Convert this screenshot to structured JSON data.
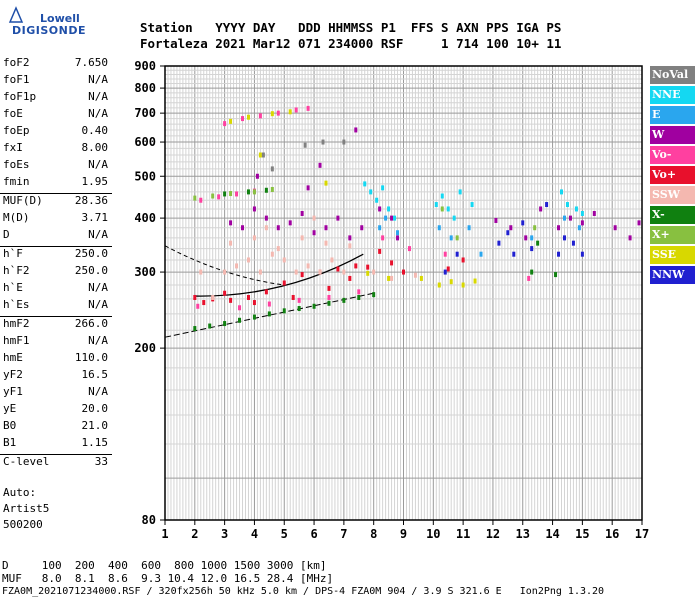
{
  "logo": {
    "line1": "Lowell",
    "line2": "DIGISONDE"
  },
  "header": {
    "row1": "Station   YYYY DAY   DDD HHMMSS P1  FFS S AXN PPS IGA PS",
    "row2": "Fortaleza 2021 Mar12 071 234000 RSF     1 714 100 10+ 11"
  },
  "params": [
    {
      "group": [
        {
          "label": "foF2",
          "value": "7.650"
        },
        {
          "label": "foF1",
          "value": "N/A"
        },
        {
          "label": "foF1p",
          "value": "N/A"
        },
        {
          "label": "foE",
          "value": "N/A"
        },
        {
          "label": "foEp",
          "value": "0.40"
        },
        {
          "label": "fxI",
          "value": "8.00"
        },
        {
          "label": "foEs",
          "value": "N/A"
        },
        {
          "label": "fmin",
          "value": "1.95"
        }
      ]
    },
    {
      "group": [
        {
          "label": "MUF(D)",
          "value": "28.36"
        },
        {
          "label": "M(D)",
          "value": "3.71"
        },
        {
          "label": "D",
          "value": "N/A"
        }
      ]
    },
    {
      "group": [
        {
          "label": "h`F",
          "value": "250.0"
        },
        {
          "label": "h`F2",
          "value": "250.0"
        },
        {
          "label": "h`E",
          "value": "N/A"
        },
        {
          "label": "h`Es",
          "value": "N/A"
        }
      ]
    },
    {
      "group": [
        {
          "label": "hmF2",
          "value": "266.0"
        },
        {
          "label": "hmF1",
          "value": "N/A"
        },
        {
          "label": "hmE",
          "value": "110.0"
        },
        {
          "label": "yF2",
          "value": "16.5"
        },
        {
          "label": "yF1",
          "value": "N/A"
        },
        {
          "label": "yE",
          "value": "20.0"
        },
        {
          "label": "B0",
          "value": "21.0"
        },
        {
          "label": "B1",
          "value": "1.15"
        }
      ]
    },
    {
      "group": [
        {
          "label": "C-level",
          "value": "33"
        }
      ]
    }
  ],
  "autoscaling": {
    "line1": "Auto:",
    "line2": "Artist5",
    "line3": "500200"
  },
  "legend": [
    {
      "label": "NoVal",
      "color": "#808080"
    },
    {
      "label": "NNE",
      "color": "#14d8f2"
    },
    {
      "label": "E",
      "color": "#2aa6ee"
    },
    {
      "label": "W",
      "color": "#a000a0"
    },
    {
      "label": "Vo-",
      "color": "#ff40a0"
    },
    {
      "label": "Vo+",
      "color": "#e8102c"
    },
    {
      "label": "SSW",
      "color": "#f4b8b0"
    },
    {
      "label": "X-",
      "color": "#108010"
    },
    {
      "label": "X+",
      "color": "#88c040"
    },
    {
      "label": "SSE",
      "color": "#d8d800"
    },
    {
      "label": "NNW",
      "color": "#2020d0"
    }
  ],
  "muf_table": {
    "row_d": "D     100  200  400  600  800 1000 1500 3000 [km]",
    "row_muf": "MUF   8.0  8.1  8.6  9.3 10.4 12.0 16.5 28.4 [MHz]"
  },
  "footer": "FZA0M_2021071234000.RSF / 320fx256h 50 kHz 5.0 km / DPS-4 FZA0M 904 / 3.9 S 321.6 E   Ion2Png 1.3.20",
  "chart_data": {
    "type": "scatter",
    "x_ticks": [
      "1",
      "2",
      "3",
      "4",
      "5",
      "6",
      "7",
      "8",
      "9",
      "10",
      "11",
      "12",
      "13",
      "14",
      "15",
      "16",
      "17"
    ],
    "y_ticks": [
      "80",
      "200",
      "300",
      "400",
      "500",
      "600",
      "700",
      "800",
      "900"
    ],
    "xlim": [
      1,
      17
    ],
    "y_scale": "log",
    "ylim": [
      80,
      900
    ],
    "grid": true,
    "series": [
      {
        "name": "Vo+",
        "color": "#e8102c",
        "points": [
          [
            2.0,
            262
          ],
          [
            2.6,
            260
          ],
          [
            3.2,
            258
          ],
          [
            3.8,
            262
          ],
          [
            4.4,
            270
          ],
          [
            5.0,
            283
          ],
          [
            5.6,
            296
          ],
          [
            6.2,
            300
          ],
          [
            6.8,
            305
          ],
          [
            7.4,
            310
          ],
          [
            7.8,
            308
          ],
          [
            2.3,
            255
          ],
          [
            3.0,
            268
          ],
          [
            4.0,
            255
          ],
          [
            5.3,
            262
          ],
          [
            6.5,
            275
          ],
          [
            7.2,
            290
          ],
          [
            8.2,
            335
          ],
          [
            8.6,
            315
          ],
          [
            9.0,
            300
          ],
          [
            10.5,
            305
          ],
          [
            11.0,
            320
          ]
        ]
      },
      {
        "name": "Vo-",
        "color": "#ff40a0",
        "points": [
          [
            3.0,
            662
          ],
          [
            3.6,
            680
          ],
          [
            4.2,
            690
          ],
          [
            4.8,
            700
          ],
          [
            5.4,
            712
          ],
          [
            5.8,
            718
          ],
          [
            2.2,
            440
          ],
          [
            2.8,
            448
          ],
          [
            3.4,
            455
          ],
          [
            4.0,
            462
          ],
          [
            2.1,
            250
          ],
          [
            3.5,
            248
          ],
          [
            4.5,
            253
          ],
          [
            5.5,
            258
          ],
          [
            6.5,
            262
          ],
          [
            7.5,
            270
          ],
          [
            8.3,
            360
          ],
          [
            9.2,
            340
          ],
          [
            10.4,
            330
          ],
          [
            13.2,
            290
          ]
        ]
      },
      {
        "name": "X-",
        "color": "#108010",
        "points": [
          [
            2.0,
            222
          ],
          [
            2.5,
            225
          ],
          [
            3.0,
            228
          ],
          [
            3.5,
            232
          ],
          [
            4.0,
            236
          ],
          [
            4.5,
            240
          ],
          [
            5.0,
            244
          ],
          [
            5.5,
            247
          ],
          [
            6.0,
            250
          ],
          [
            6.5,
            254
          ],
          [
            7.0,
            258
          ],
          [
            7.5,
            262
          ],
          [
            8.0,
            266
          ],
          [
            3.0,
            455
          ],
          [
            3.8,
            460
          ],
          [
            4.4,
            464
          ],
          [
            13.3,
            300
          ],
          [
            13.5,
            350
          ],
          [
            14.1,
            296
          ]
        ]
      },
      {
        "name": "X+",
        "color": "#88c040",
        "points": [
          [
            2.0,
            445
          ],
          [
            2.6,
            450
          ],
          [
            3.2,
            456
          ],
          [
            4.0,
            460
          ],
          [
            4.6,
            466
          ],
          [
            10.3,
            420
          ],
          [
            10.8,
            360
          ],
          [
            13.4,
            380
          ]
        ]
      },
      {
        "name": "SSE",
        "color": "#d8d800",
        "points": [
          [
            3.2,
            670
          ],
          [
            3.8,
            685
          ],
          [
            4.6,
            698
          ],
          [
            5.2,
            705
          ],
          [
            9.6,
            290
          ],
          [
            10.2,
            280
          ],
          [
            10.6,
            285
          ],
          [
            11.0,
            280
          ],
          [
            11.4,
            286
          ],
          [
            6.4,
            482
          ],
          [
            4.2,
            560
          ],
          [
            8.5,
            290
          ],
          [
            7.8,
            298
          ]
        ]
      },
      {
        "name": "SSW",
        "color": "#f4b8b0",
        "points": [
          [
            3.0,
            300
          ],
          [
            3.4,
            310
          ],
          [
            3.8,
            320
          ],
          [
            4.2,
            300
          ],
          [
            4.6,
            330
          ],
          [
            5.0,
            320
          ],
          [
            5.4,
            300
          ],
          [
            5.8,
            310
          ],
          [
            6.2,
            300
          ],
          [
            6.6,
            320
          ],
          [
            7.0,
            300
          ],
          [
            3.2,
            350
          ],
          [
            4.0,
            360
          ],
          [
            4.8,
            340
          ],
          [
            5.6,
            360
          ],
          [
            6.4,
            350
          ],
          [
            7.2,
            345
          ],
          [
            8.0,
            300
          ],
          [
            8.6,
            290
          ],
          [
            9.4,
            295
          ],
          [
            2.6,
            262
          ],
          [
            2.2,
            300
          ],
          [
            6.0,
            400
          ],
          [
            4.4,
            380
          ]
        ]
      },
      {
        "name": "W",
        "color": "#a000a0",
        "points": [
          [
            3.2,
            390
          ],
          [
            3.6,
            380
          ],
          [
            4.0,
            420
          ],
          [
            4.4,
            400
          ],
          [
            4.8,
            380
          ],
          [
            5.2,
            390
          ],
          [
            5.6,
            410
          ],
          [
            6.0,
            370
          ],
          [
            6.4,
            380
          ],
          [
            6.8,
            400
          ],
          [
            7.2,
            360
          ],
          [
            7.6,
            380
          ],
          [
            8.2,
            420
          ],
          [
            8.6,
            400
          ],
          [
            8.8,
            360
          ],
          [
            12.1,
            395
          ],
          [
            12.6,
            380
          ],
          [
            13.1,
            360
          ],
          [
            13.6,
            420
          ],
          [
            14.2,
            380
          ],
          [
            14.6,
            400
          ],
          [
            15.0,
            390
          ],
          [
            15.4,
            410
          ],
          [
            16.1,
            380
          ],
          [
            16.6,
            360
          ],
          [
            16.9,
            390
          ],
          [
            5.8,
            470
          ],
          [
            4.1,
            500
          ],
          [
            6.2,
            530
          ],
          [
            7.4,
            640
          ]
        ]
      },
      {
        "name": "NNE",
        "color": "#14d8f2",
        "points": [
          [
            7.7,
            480
          ],
          [
            7.9,
            460
          ],
          [
            8.1,
            440
          ],
          [
            8.3,
            470
          ],
          [
            8.5,
            420
          ],
          [
            8.7,
            400
          ],
          [
            10.1,
            430
          ],
          [
            10.3,
            450
          ],
          [
            10.5,
            420
          ],
          [
            10.7,
            400
          ],
          [
            10.9,
            460
          ],
          [
            11.3,
            430
          ],
          [
            14.3,
            460
          ],
          [
            14.5,
            430
          ],
          [
            14.8,
            420
          ],
          [
            15.0,
            410
          ]
        ]
      },
      {
        "name": "E",
        "color": "#2aa6ee",
        "points": [
          [
            8.2,
            380
          ],
          [
            8.4,
            400
          ],
          [
            8.8,
            370
          ],
          [
            10.2,
            380
          ],
          [
            10.6,
            360
          ],
          [
            11.2,
            380
          ],
          [
            13.3,
            360
          ],
          [
            14.4,
            400
          ],
          [
            14.9,
            380
          ],
          [
            11.6,
            330
          ]
        ]
      },
      {
        "name": "NNW",
        "color": "#2020d0",
        "points": [
          [
            12.2,
            350
          ],
          [
            12.5,
            370
          ],
          [
            12.7,
            330
          ],
          [
            13.0,
            390
          ],
          [
            13.3,
            340
          ],
          [
            14.2,
            330
          ],
          [
            14.4,
            360
          ],
          [
            14.7,
            350
          ],
          [
            15.0,
            330
          ],
          [
            10.4,
            300
          ],
          [
            10.8,
            330
          ],
          [
            13.8,
            430
          ]
        ]
      },
      {
        "name": "NoVal",
        "color": "#808080",
        "points": [
          [
            4.3,
            560
          ],
          [
            5.7,
            590
          ],
          [
            6.3,
            600
          ],
          [
            7.0,
            600
          ],
          [
            4.6,
            520
          ]
        ]
      }
    ]
  }
}
